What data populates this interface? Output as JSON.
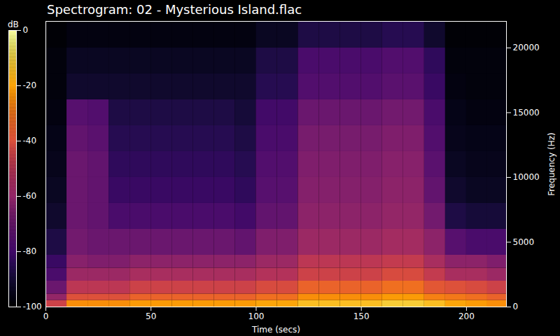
{
  "chart_data": {
    "type": "heatmap",
    "title": "Spectrogram: 02 - Mysterious Island.flac",
    "x_label": "Time (secs)",
    "y_label": "Frequency (Hz)",
    "xlim": [
      0,
      219
    ],
    "xticks": [
      0,
      50,
      100,
      150,
      200
    ],
    "ylim": [
      0,
      22050
    ],
    "yticks": [
      0,
      5000,
      10000,
      15000,
      20000
    ],
    "time_bins": [
      0,
      10,
      20,
      30,
      40,
      50,
      60,
      70,
      80,
      90,
      100,
      110,
      120,
      130,
      140,
      150,
      160,
      170,
      180,
      190,
      200,
      210,
      219
    ],
    "frequency_bins": [
      0,
      500,
      1000,
      2000,
      3000,
      4000,
      6000,
      8000,
      10000,
      12000,
      14000,
      16000,
      18000,
      20000,
      22050
    ],
    "cells": [
      [
        -45,
        -25,
        -25,
        -25,
        -22,
        -22,
        -22,
        -22,
        -22,
        -22,
        -20,
        -20,
        -15,
        -15,
        -15,
        -15,
        -12,
        -12,
        -15,
        -20,
        -22,
        -25
      ],
      [
        -60,
        -40,
        -40,
        -40,
        -35,
        -35,
        -35,
        -35,
        -35,
        -35,
        -32,
        -32,
        -25,
        -25,
        -25,
        -25,
        -22,
        -22,
        -28,
        -30,
        -32,
        -35
      ],
      [
        -70,
        -50,
        -50,
        -50,
        -45,
        -45,
        -45,
        -45,
        -45,
        -45,
        -42,
        -42,
        -35,
        -35,
        -35,
        -35,
        -32,
        -32,
        -38,
        -40,
        -42,
        -45
      ],
      [
        -78,
        -58,
        -58,
        -58,
        -55,
        -55,
        -55,
        -55,
        -55,
        -55,
        -52,
        -52,
        -45,
        -45,
        -45,
        -45,
        -42,
        -42,
        -48,
        -55,
        -55,
        -58
      ],
      [
        -82,
        -63,
        -65,
        -65,
        -62,
        -62,
        -62,
        -62,
        -62,
        -62,
        -58,
        -58,
        -50,
        -50,
        -50,
        -50,
        -48,
        -48,
        -55,
        -62,
        -62,
        -65
      ],
      [
        -88,
        -68,
        -70,
        -70,
        -70,
        -70,
        -70,
        -70,
        -70,
        -72,
        -65,
        -65,
        -58,
        -58,
        -58,
        -58,
        -56,
        -56,
        -62,
        -75,
        -78,
        -78
      ],
      [
        -92,
        -70,
        -72,
        -78,
        -78,
        -78,
        -78,
        -78,
        -78,
        -80,
        -72,
        -72,
        -62,
        -62,
        -62,
        -62,
        -60,
        -60,
        -68,
        -88,
        -90,
        -90
      ],
      [
        -94,
        -70,
        -72,
        -82,
        -82,
        -82,
        -82,
        -82,
        -82,
        -84,
        -75,
        -75,
        -64,
        -64,
        -64,
        -64,
        -62,
        -62,
        -72,
        -92,
        -94,
        -94
      ],
      [
        -95,
        -70,
        -72,
        -84,
        -84,
        -84,
        -84,
        -84,
        -84,
        -86,
        -76,
        -76,
        -65,
        -65,
        -65,
        -65,
        -63,
        -63,
        -74,
        -94,
        -95,
        -95
      ],
      [
        -96,
        -72,
        -74,
        -86,
        -86,
        -86,
        -86,
        -86,
        -86,
        -88,
        -78,
        -78,
        -67,
        -67,
        -67,
        -67,
        -65,
        -65,
        -76,
        -95,
        -96,
        -96
      ],
      [
        -97,
        -75,
        -76,
        -88,
        -88,
        -88,
        -88,
        -88,
        -88,
        -90,
        -80,
        -80,
        -70,
        -70,
        -70,
        -70,
        -68,
        -68,
        -78,
        -96,
        -97,
        -97
      ],
      [
        -98,
        -92,
        -92,
        -92,
        -92,
        -92,
        -92,
        -92,
        -92,
        -92,
        -86,
        -86,
        -76,
        -76,
        -76,
        -76,
        -74,
        -74,
        -82,
        -97,
        -98,
        -98
      ],
      [
        -98,
        -94,
        -94,
        -94,
        -94,
        -94,
        -94,
        -94,
        -94,
        -94,
        -88,
        -88,
        -78,
        -78,
        -78,
        -78,
        -76,
        -76,
        -84,
        -98,
        -98,
        -98
      ],
      [
        -99,
        -97,
        -97,
        -97,
        -97,
        -97,
        -97,
        -97,
        -97,
        -97,
        -94,
        -94,
        -88,
        -88,
        -88,
        -88,
        -86,
        -86,
        -92,
        -99,
        -99,
        -99
      ]
    ],
    "colorbar": {
      "label": "dB",
      "range": [
        -100,
        0
      ],
      "ticks": [
        -100,
        -80,
        -60,
        -40,
        -20,
        0
      ]
    }
  }
}
